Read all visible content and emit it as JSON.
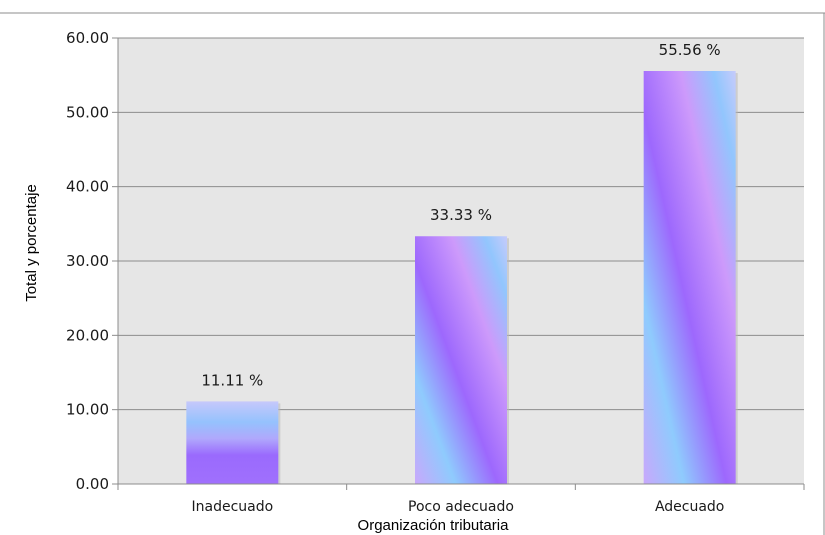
{
  "chart_data": {
    "type": "bar",
    "categories": [
      "Inadecuado",
      "Poco adecuado",
      "Adecuado"
    ],
    "values": [
      11.11,
      33.33,
      55.56
    ],
    "data_labels": [
      "11.11 %",
      "33.33 %",
      "55.56 %"
    ],
    "xlabel": "Organización tributaria",
    "ylabel": "Total y porcentaje",
    "ylim": [
      0,
      60
    ],
    "yticks": [
      "0.00",
      "10.00",
      "20.00",
      "30.00",
      "40.00",
      "50.00",
      "60.00"
    ],
    "grid": true,
    "legend": "none",
    "colors": {
      "plot_background": "#e6e6e6",
      "gridline": "#8c8c8c",
      "bar_gradient": [
        "#c4c9fb",
        "#9c6cfd",
        "#8fc8fd",
        "#cc9cfb"
      ]
    }
  }
}
